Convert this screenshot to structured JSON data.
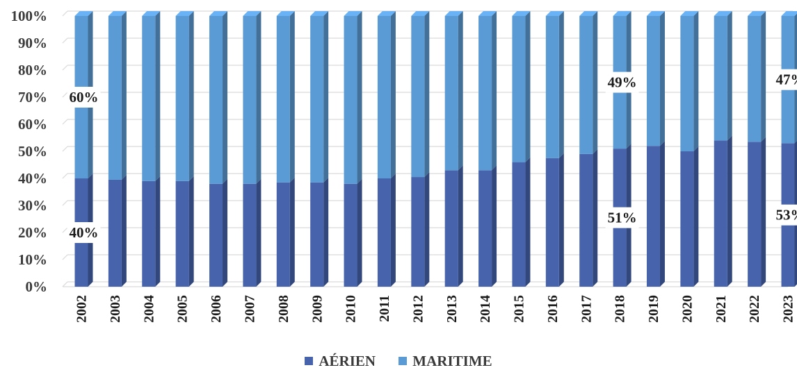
{
  "chart_data": {
    "type": "bar",
    "stacked": true,
    "percent": true,
    "categories": [
      "2002",
      "2003",
      "2004",
      "2005",
      "2006",
      "2007",
      "2008",
      "2009",
      "2010",
      "2011",
      "2012",
      "2013",
      "2014",
      "2015",
      "2016",
      "2017",
      "2018",
      "2019",
      "2020",
      "2021",
      "2022",
      "2023"
    ],
    "series": [
      {
        "name": "AÉRIEN",
        "color": "#4663ac",
        "values": [
          40,
          39.5,
          39,
          39,
          38,
          38,
          38.5,
          38.5,
          38,
          40,
          40.5,
          43,
          43,
          46,
          47.5,
          49,
          51,
          52,
          50,
          54,
          53.5,
          53
        ]
      },
      {
        "name": "MARITIME",
        "color": "#5b9bd5",
        "values": [
          60,
          60.5,
          61,
          61,
          62,
          62,
          61.5,
          61.5,
          62,
          60,
          59.5,
          57,
          57,
          54,
          52.5,
          51,
          49,
          48,
          50,
          46,
          46.5,
          47
        ]
      }
    ],
    "yticks": [
      "0%",
      "10%",
      "20%",
      "30%",
      "40%",
      "50%",
      "60%",
      "70%",
      "80%",
      "90%",
      "100%"
    ],
    "ylim": [
      0,
      100
    ],
    "grid": true,
    "legend_position": "bottom",
    "data_labels": [
      {
        "category": "2002",
        "series": "MARITIME",
        "text": "60%"
      },
      {
        "category": "2002",
        "series": "AÉRIEN",
        "text": "40%"
      },
      {
        "category": "2018",
        "series": "MARITIME",
        "text": "49%"
      },
      {
        "category": "2018",
        "series": "AÉRIEN",
        "text": "51%"
      },
      {
        "category": "2023",
        "series": "MARITIME",
        "text": "47%"
      },
      {
        "category": "2023",
        "series": "AÉRIEN",
        "text": "53%"
      }
    ]
  }
}
